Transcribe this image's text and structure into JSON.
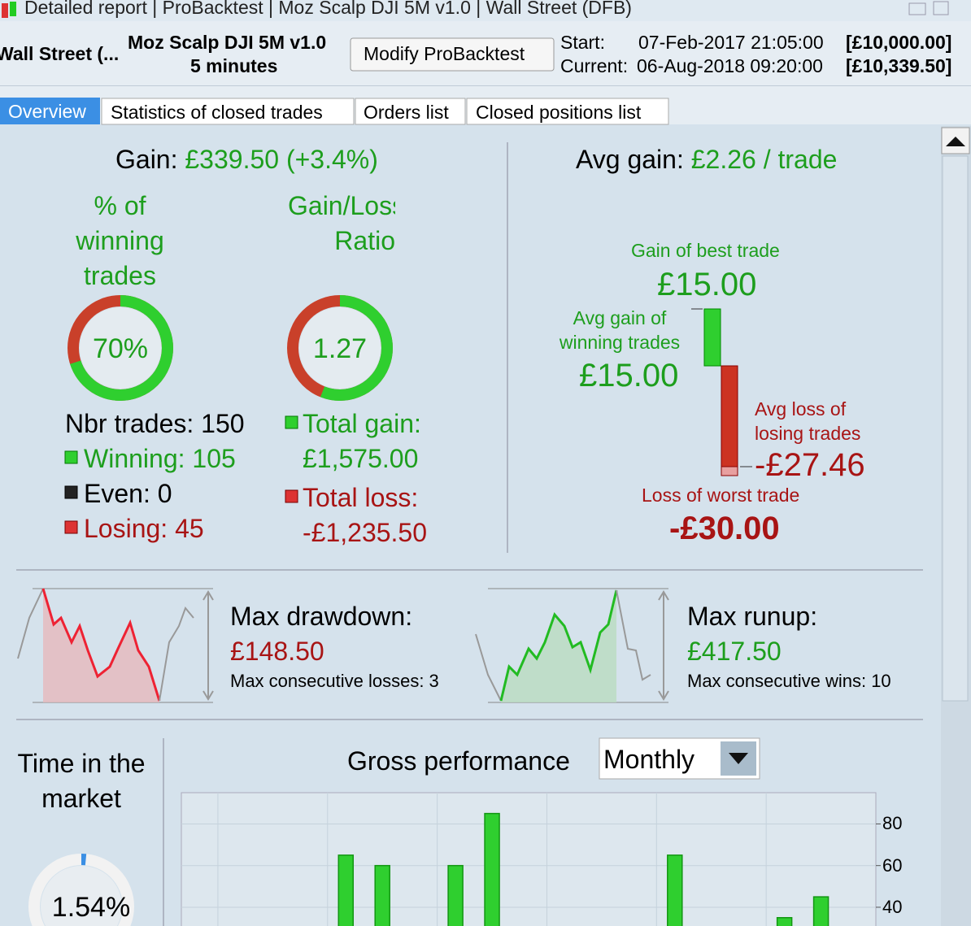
{
  "window_title": [
    "Detailed report",
    "ProBacktest",
    "Moz Scalp DJI 5M v1.0",
    "Wall Street (DFB)"
  ],
  "header": {
    "instrument": "Wall Street (...",
    "strategy": "Moz Scalp DJI 5M v1.0",
    "timeframe": "5 minutes",
    "button": "Modify ProBacktest",
    "start_label": "Start:",
    "start_date": "07-Feb-2017 21:05:00",
    "start_capital": "[£10,000.00]",
    "current_label": "Current:",
    "current_date": "06-Aug-2018 09:20:00",
    "current_capital": "[£10,339.50]"
  },
  "tabs": [
    "Overview",
    "Statistics of closed trades",
    "Orders list",
    "Closed positions list"
  ],
  "overview": {
    "gain_label": "Gain:",
    "gain": "£339.50",
    "gain_pct": "(+3.4%)",
    "winning_title": "% of winning trades",
    "ratio_title": "Gain/Loss Ratio",
    "winning_pct": {
      "value": 70,
      "label": "70%"
    },
    "ratio": "1.27",
    "nbr_trades": "Nbr trades: 150",
    "winning": "Winning: 105",
    "even": "Even: 0",
    "losing": "Losing: 45",
    "total_gain_label": "Total gain:",
    "total_gain": "£1,575.00",
    "total_loss_label": "Total loss:",
    "total_loss": "-£1,235.50",
    "avg_gain_label": "Avg gain:",
    "avg_gain": "£2.26 / trade",
    "best_label": "Gain of best trade",
    "best": "£15.00",
    "avg_win_label": "Avg gain of winning trades",
    "avg_win": "£15.00",
    "avg_loss_label": "Avg loss of losing trades",
    "avg_loss": "-£27.46",
    "worst_label": "Loss of worst trade",
    "worst": "-£30.00"
  },
  "drawdown": {
    "label": "Max drawdown:",
    "value": "£148.50",
    "consecutive": "Max consecutive losses: 3"
  },
  "runup": {
    "label": "Max runup:",
    "value": "£417.50",
    "consecutive": "Max consecutive wins: 10"
  },
  "time_in_market": {
    "label": "Time in the market",
    "value": {
      "value": 1.54,
      "label": "1.54%"
    }
  },
  "gross_performance": {
    "title": "Gross performance",
    "period": "Monthly",
    "values": [
      null,
      null,
      null,
      null,
      65,
      60,
      null,
      60,
      85,
      null,
      null,
      null,
      null,
      65,
      null,
      null,
      35,
      45,
      null
    ],
    "ylim": [
      31,
      95
    ],
    "yticks": [
      40,
      60,
      80
    ]
  }
}
